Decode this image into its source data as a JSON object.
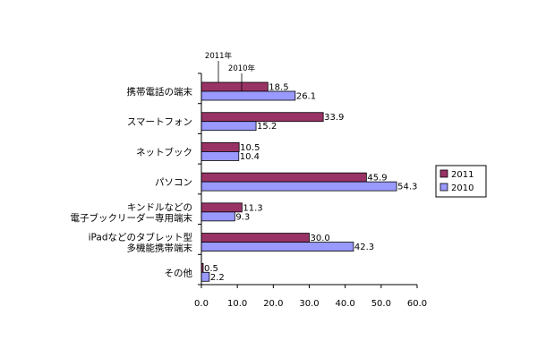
{
  "chart_data": {
    "type": "bar",
    "orientation": "horizontal",
    "categories": [
      [
        "携帯電話の端末"
      ],
      [
        "スマートフォン"
      ],
      [
        "ネットブック"
      ],
      [
        "パソコン"
      ],
      [
        "キンドルなどの",
        "電子ブックリーダー専用端末"
      ],
      [
        "iPadなどのタブレット型",
        "多機能携帯端末"
      ],
      [
        "その他"
      ]
    ],
    "series": [
      {
        "name": "2011",
        "color": "#993366",
        "values": [
          18.5,
          33.9,
          10.5,
          45.9,
          11.3,
          30.0,
          0.5
        ]
      },
      {
        "name": "2010",
        "color": "#9999ff",
        "values": [
          26.1,
          15.2,
          10.4,
          54.3,
          9.3,
          42.3,
          2.2
        ]
      }
    ],
    "xlim": [
      0,
      60
    ],
    "xticks": [
      "0.0",
      "10.0",
      "20.0",
      "30.0",
      "40.0",
      "50.0",
      "60.0"
    ],
    "legend_position": "right",
    "annotations": [
      "2011年",
      "2010年"
    ],
    "grid": false
  }
}
